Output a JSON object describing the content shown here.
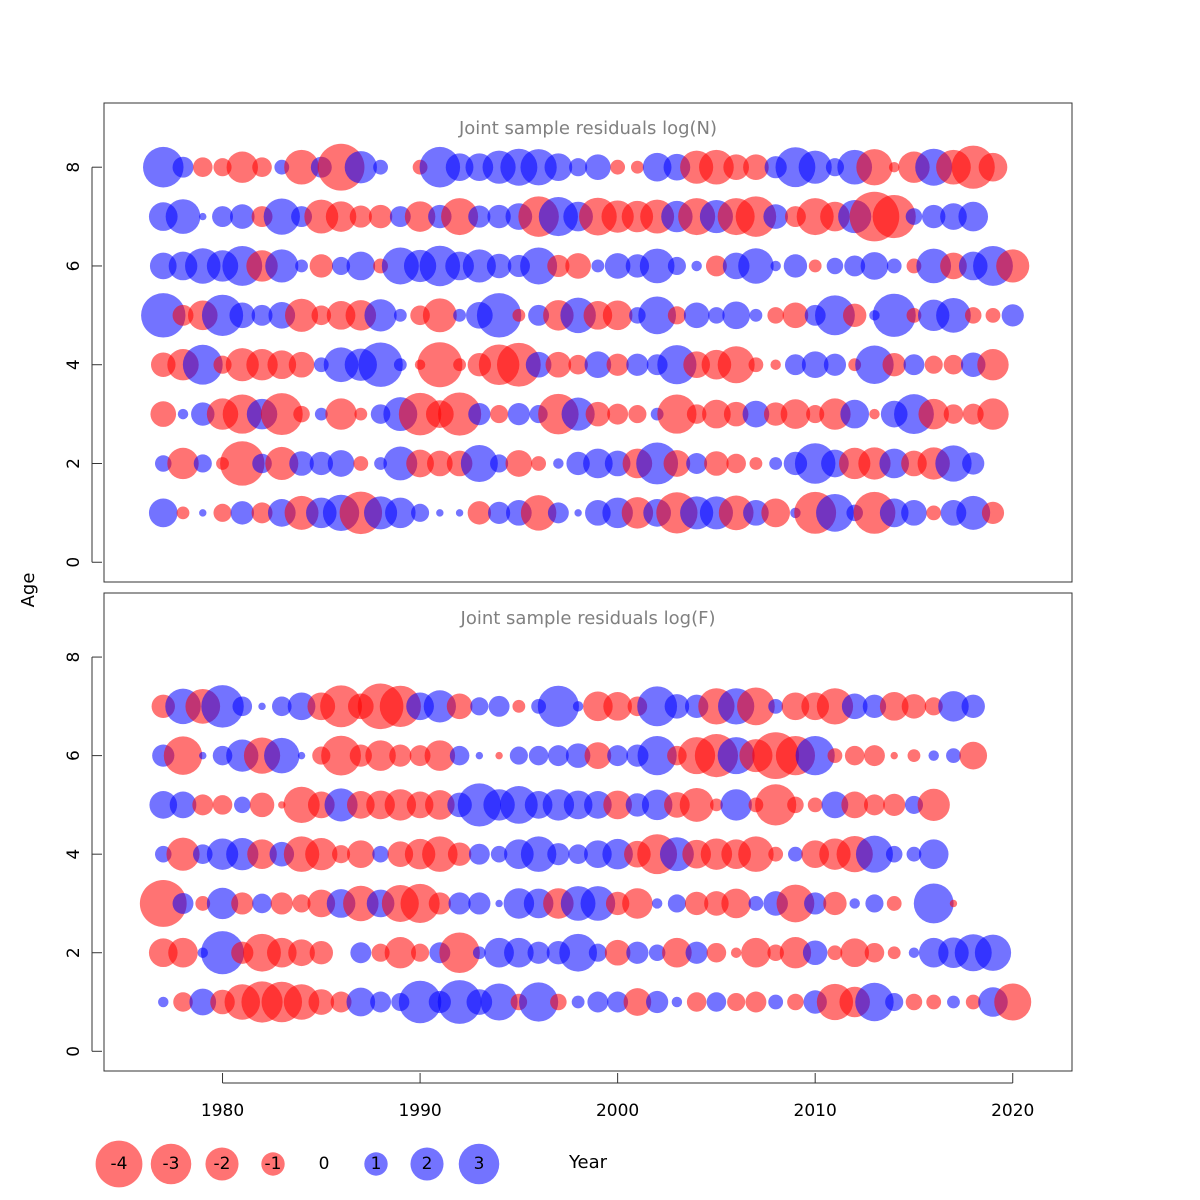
{
  "chart_data": {
    "type": "bubble",
    "ylabel": "Age",
    "xlabel": "Year",
    "xlim": [
      1974,
      2023
    ],
    "x_ticks": [
      1980,
      1990,
      2000,
      2010,
      2020
    ],
    "y_ticks": [
      0,
      2,
      4,
      6,
      8
    ],
    "ylim": [
      -0.4,
      9.3
    ],
    "colors": {
      "negative": "#ff0000",
      "positive": "#0000ff",
      "opacity": 0.55
    },
    "legend": {
      "position": "bottom-left",
      "values": [
        -4,
        -3,
        -2,
        -1,
        0,
        1,
        2,
        3
      ],
      "labels": [
        "-4",
        "-3",
        "-2",
        "-1",
        "0",
        "1",
        "2",
        "3"
      ]
    },
    "panels": [
      {
        "title": "Joint sample residuals log(N)",
        "start_year": 1977,
        "ages": [
          8,
          7,
          6,
          5,
          4,
          3,
          2,
          1
        ],
        "residuals": [
          [
            3,
            0.8,
            -0.7,
            -0.6,
            -1.8,
            -0.7,
            0.4,
            -2.2,
            0.8,
            -4,
            1.9,
            0.4,
            0,
            -0.4,
            3,
            1.4,
            1.4,
            2,
            2.5,
            2.4,
            1.4,
            0.6,
            1.2,
            -0.4,
            -0.3,
            1.5,
            1.3,
            -2,
            -2.2,
            -1.2,
            -1.2,
            0.9,
            2.9,
            2,
            0.6,
            2.2,
            -2.4,
            -0.2,
            -1.8,
            2.5,
            -2.2,
            -3.4,
            -1.5
          ],
          [
            1.5,
            2.2,
            0.1,
            0.8,
            1.1,
            -0.8,
            2.4,
            0.8,
            -2.1,
            -1.7,
            -0.9,
            -1,
            0.8,
            -1.7,
            1,
            -2.5,
            0.9,
            1,
            1.3,
            -3,
            2.8,
            1.6,
            -2.6,
            -1.9,
            -1.8,
            -2.1,
            1.8,
            -2.5,
            2,
            -2.5,
            -3,
            1.1,
            -0.8,
            -2.5,
            -1.6,
            2,
            -4.5,
            -3.4,
            0.5,
            1,
            1.3,
            1.6,
            0
          ],
          [
            1.3,
            1.5,
            2.3,
            1.8,
            2.9,
            -1.8,
            2,
            0.3,
            -1,
            0.6,
            1.5,
            -0.4,
            2.5,
            1.9,
            3,
            1.5,
            2,
            1.1,
            0.9,
            2.5,
            -0.9,
            -1.2,
            0.3,
            1.2,
            1,
            2.2,
            0.6,
            0.2,
            -0.8,
            1.3,
            2.3,
            0.2,
            1,
            -0.3,
            0.5,
            0.8,
            1.4,
            0.4,
            -0.4,
            2.2,
            -1.3,
            1.5,
            2.9,
            -2
          ],
          [
            3.6,
            -0.8,
            -1.6,
            3.1,
            1.2,
            0.8,
            1.3,
            -2,
            -0.7,
            -1.5,
            -1.7,
            1.9,
            0.3,
            -0.7,
            -2.1,
            0.3,
            1.3,
            3.6,
            -0.3,
            0.8,
            -1.7,
            2.3,
            -1.5,
            -1.6,
            0.5,
            2.6,
            -0.6,
            1.2,
            0.5,
            1.4,
            0.3,
            -0.5,
            -1.2,
            0.8,
            2.9,
            -1,
            0.2,
            3.4,
            -0.4,
            1.8,
            2.2,
            -0.5,
            -0.4,
            0.9
          ],
          [
            -1.1,
            -1.8,
            2.9,
            -0.6,
            -2,
            -1.8,
            -1.5,
            -1.2,
            0.4,
            2.2,
            1.9,
            3.6,
            0.3,
            -0.2,
            -3.7,
            -0.3,
            -1,
            -3,
            -3.5,
            1.2,
            -1.2,
            -0.7,
            1.3,
            -0.9,
            0.9,
            0.8,
            2.8,
            -1.3,
            -1.6,
            -2.5,
            -0.4,
            -0.2,
            0.8,
            1.3,
            0.9,
            -0.3,
            2.7,
            -1,
            0.8,
            -0.6,
            -0.7,
            1.1,
            -1.8
          ],
          [
            -1.2,
            0.2,
            1,
            -1.8,
            -2.8,
            1.7,
            -3.2,
            -0.5,
            0.3,
            -1.8,
            -0.3,
            0.7,
            2.1,
            -3.3,
            -1.4,
            -3.4,
            0.9,
            -0.6,
            0.9,
            0.6,
            -3,
            2,
            -1.1,
            -0.8,
            -0.6,
            0.3,
            -2.8,
            -0.7,
            -1.5,
            -1.1,
            1.3,
            -1,
            -1.6,
            -0.6,
            -1.8,
            1.5,
            -0.2,
            1.3,
            2.9,
            -1.7,
            -0.7,
            -0.8,
            -1.8
          ],
          [
            0.5,
            -1.8,
            0.6,
            -0.3,
            -3.6,
            0.7,
            -2,
            1.1,
            1,
            1.3,
            -0.4,
            0.3,
            2.1,
            -1.4,
            -1.2,
            -1.2,
            2.5,
            0.6,
            -1.3,
            -0.4,
            0.2,
            1,
            1.6,
            1.2,
            -1.6,
            3.2,
            -1.3,
            0.8,
            -1.1,
            -0.7,
            -0.3,
            0.3,
            1,
            3,
            1.4,
            -1.8,
            -1.9,
            1.6,
            -1.2,
            -1.9,
            2.4,
            0.9
          ],
          [
            1.5,
            -0.3,
            0.1,
            -0.6,
            1,
            -0.8,
            1.4,
            -2.1,
            1.7,
            2.4,
            -3.3,
            2,
            1.7,
            0.6,
            0.1,
            0.1,
            -1,
            0.9,
            1.2,
            -2.3,
            0.8,
            0.1,
            1.2,
            1.7,
            -1.8,
            1.4,
            -3.1,
            2,
            2,
            -2.2,
            1.2,
            -1.5,
            0.2,
            -3.2,
            2.6,
            0.5,
            -3.2,
            1.5,
            1.2,
            -0.4,
            1.2,
            2.1,
            -0.9
          ]
        ]
      },
      {
        "title": "Joint sample residuals log(F)",
        "start_year": 1977,
        "ages": [
          7,
          6,
          5,
          4,
          3,
          2,
          1
        ],
        "residuals": [
          [
            -1,
            2.3,
            -2.2,
            3.3,
            0.7,
            0.1,
            0.7,
            1.4,
            -1.4,
            -3.2,
            -1.2,
            -3.8,
            -3.1,
            1.4,
            1.9,
            -1.2,
            0.6,
            0.8,
            -0.3,
            0.4,
            3.1,
            0.2,
            -1.6,
            -1.5,
            -0.7,
            2.9,
            1.1,
            1,
            -2.4,
            2.4,
            -2.6,
            0.4,
            -1.4,
            -1.4,
            -2.4,
            1.2,
            1,
            -1.5,
            -1.1,
            -0.6,
            1.7,
            1
          ],
          [
            0.9,
            -2.7,
            0.1,
            0.7,
            1.9,
            -2.4,
            2.3,
            0.1,
            -0.6,
            -2.9,
            -0.9,
            -1.7,
            -0.9,
            -0.8,
            -1.7,
            0.7,
            0.1,
            -0.1,
            0.6,
            0.7,
            0.8,
            1.1,
            -1.3,
            0.8,
            0.9,
            2.8,
            -0.7,
            -2.5,
            -3.4,
            2.5,
            -2,
            -4,
            -2.8,
            2.8,
            -0.4,
            -0.7,
            -0.8,
            -0.1,
            -0.3,
            0.2,
            0.4,
            -1.4
          ],
          [
            1.4,
            1.3,
            -0.8,
            -0.7,
            0.5,
            -1.1,
            -0.1,
            -2.4,
            -1.3,
            2,
            -1.4,
            -1.5,
            -1.8,
            -1.3,
            -1.6,
            1.1,
            3.4,
            1.8,
            2.6,
            1.4,
            1.8,
            1.5,
            1.4,
            -1.5,
            1,
            1.7,
            -1.2,
            -2.1,
            -0.3,
            1.8,
            -0.4,
            -3.1,
            -0.5,
            -0.4,
            1.3,
            -1.3,
            -0.8,
            -0.9,
            0.6,
            -1.9
          ],
          [
            0.5,
            -2,
            0.7,
            1.8,
            1.9,
            -1.6,
            1.1,
            -2.3,
            -1.9,
            -0.6,
            -1.4,
            0.5,
            -1.2,
            -1.7,
            -2.3,
            -1,
            0.8,
            0.5,
            1.6,
            2.3,
            0.9,
            0.7,
            1.4,
            1.7,
            -1.3,
            -2.9,
            2.1,
            -1.5,
            -1.8,
            -1.6,
            -2.3,
            -0.4,
            0.4,
            -1.4,
            -1.8,
            -2.4,
            2.5,
            0.5,
            0.4,
            1.6
          ],
          [
            -4,
            0.8,
            -0.4,
            1.8,
            -0.9,
            0.7,
            -0.9,
            -0.6,
            -1.4,
            1.5,
            -2.3,
            1.4,
            -2.5,
            -2.8,
            -0.9,
            0.9,
            0.9,
            0.1,
            1.7,
            1.6,
            -1.7,
            2.2,
            2.2,
            -1,
            -1.7,
            0.2,
            0.6,
            -1,
            -1.1,
            -1.6,
            0.4,
            1.1,
            -2.6,
            0.9,
            -1,
            0.2,
            0.6,
            -0.4,
            0,
            2.9,
            -0.1
          ],
          [
            -1.5,
            -1.6,
            0.2,
            3.4,
            -0.9,
            -2.6,
            -1.6,
            -1.3,
            -1,
            0,
            0.8,
            -0.6,
            -1.8,
            -0.6,
            0.8,
            -3,
            0.3,
            1.6,
            1.6,
            0.9,
            1,
            2.6,
            0.6,
            -1.2,
            0.9,
            0.5,
            -1.6,
            0.9,
            -0.7,
            -0.2,
            -1.6,
            -0.5,
            -1.8,
            1.1,
            -0.4,
            -1.5,
            -0.7,
            -0.3,
            0.2,
            1.6,
            1.7,
            2.5,
            2.4
          ],
          [
            0.2,
            -0.7,
            1.3,
            -1.1,
            -2.3,
            -3.1,
            -3,
            -2.3,
            -1.2,
            -0.8,
            1.5,
            0.8,
            0.6,
            3.3,
            0.9,
            3.5,
            1.2,
            2.5,
            -0.5,
            2.8,
            -0.5,
            0.3,
            0.8,
            0.8,
            -1.4,
            0.9,
            0.2,
            -0.7,
            0.7,
            -0.6,
            -0.8,
            0.4,
            -0.5,
            1,
            -2.4,
            -1.7,
            2.7,
            0.6,
            -0.5,
            -0.4,
            0.3,
            -0.4,
            1.6,
            -2.5
          ]
        ]
      }
    ]
  }
}
